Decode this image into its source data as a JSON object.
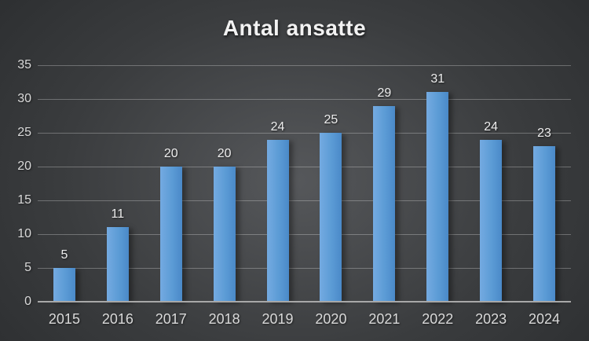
{
  "chart_data": {
    "type": "bar",
    "title": "Antal ansatte",
    "categories": [
      "2015",
      "2016",
      "2017",
      "2018",
      "2019",
      "2020",
      "2021",
      "2022",
      "2023",
      "2024"
    ],
    "values": [
      5,
      11,
      20,
      20,
      24,
      25,
      29,
      31,
      24,
      23
    ],
    "xlabel": "",
    "ylabel": "",
    "ylim": [
      0,
      35
    ],
    "ytick_step": 5,
    "yticks": [
      0,
      5,
      10,
      15,
      20,
      25,
      30,
      35
    ],
    "grid": true,
    "legend": false,
    "data_labels": true
  },
  "style": {
    "background_center": "#56585b",
    "background_mid": "#3a3c3e",
    "background_edge": "#242628",
    "bar_gradient_left": "#74aae1",
    "bar_gradient_mid": "#5b9bd5",
    "bar_gradient_right": "#4a89c8",
    "gridline_color": "rgba(255,255,255,0.28)",
    "axis_line_color": "#a8a8a8",
    "axis_label_color": "#d9d9d9",
    "data_label_color": "#ededed",
    "title_color": "#f2f2f2"
  }
}
